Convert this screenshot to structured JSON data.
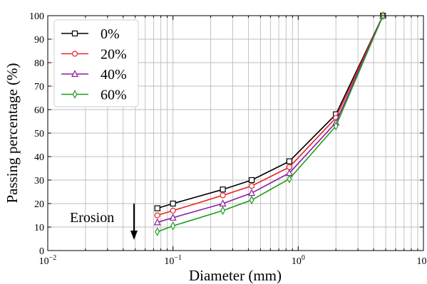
{
  "chart_data": {
    "type": "line",
    "xscale": "log",
    "xlabel": "Diameter (mm)",
    "ylabel": "Passing percentage (%)",
    "xlim": [
      0.01,
      10
    ],
    "ylim": [
      0,
      100
    ],
    "grid": true,
    "legend_position": "top-left",
    "x_tick_labels": [
      {
        "base": "10",
        "exp": "−2"
      },
      {
        "base": "10",
        "exp": "−1"
      },
      {
        "base": "10",
        "exp": "0"
      },
      {
        "base": "10",
        "exp": "1"
      }
    ],
    "y_tick_labels": [
      "0",
      "10",
      "20",
      "30",
      "40",
      "50",
      "60",
      "70",
      "80",
      "90",
      "100"
    ],
    "x": [
      0.075,
      0.1,
      0.25,
      0.425,
      0.85,
      2.0,
      4.75
    ],
    "series": [
      {
        "name": "0%",
        "color": "#000000",
        "marker": "square",
        "values": [
          18,
          20,
          26,
          30,
          38,
          58,
          100
        ]
      },
      {
        "name": "20%",
        "color": "#e8252a",
        "marker": "circle",
        "values": [
          15,
          17,
          23.5,
          27.5,
          35.5,
          56.5,
          100
        ]
      },
      {
        "name": "40%",
        "color": "#8b1fa0",
        "marker": "triangle",
        "values": [
          12,
          14,
          20,
          24.5,
          33,
          54.5,
          100
        ]
      },
      {
        "name": "60%",
        "color": "#1f9a1f",
        "marker": "diamond",
        "values": [
          8,
          10.5,
          17,
          21.5,
          30.5,
          53,
          100
        ]
      }
    ],
    "annotation": {
      "text": "Erosion",
      "arrow": "down"
    }
  }
}
